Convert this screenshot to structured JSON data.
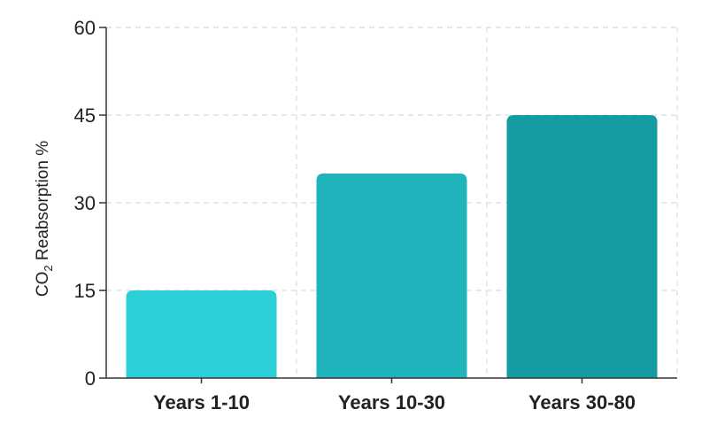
{
  "chart_data": {
    "type": "bar",
    "title": "",
    "xlabel": "",
    "ylabel": "CO2 Reabsorption %",
    "ylabel_parts": {
      "main": "CO",
      "sub": "2",
      "rest": " Reabsorption %"
    },
    "categories": [
      "Years 1-10",
      "Years 10-30",
      "Years 30-80"
    ],
    "values": [
      15,
      35,
      45
    ],
    "ylim": [
      0,
      60
    ],
    "yticks": [
      0,
      15,
      30,
      45,
      60
    ],
    "grid": true,
    "bar_colors": [
      "#2ccfd8",
      "#1fb3bb",
      "#149ca2"
    ],
    "legend": "none"
  }
}
